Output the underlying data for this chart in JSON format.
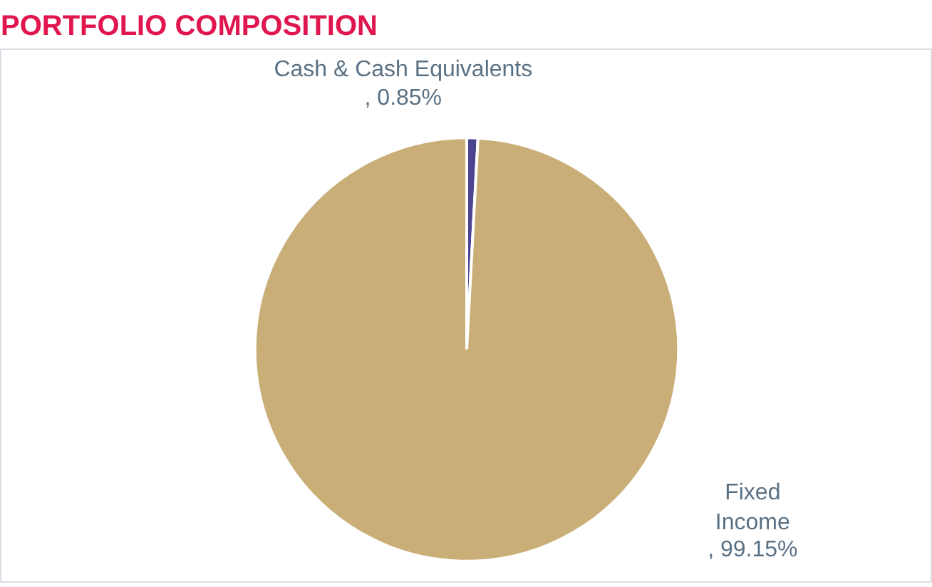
{
  "chart_data": {
    "type": "pie",
    "title": "PORTFOLIO COMPOSITION",
    "categories": [
      "Cash & Cash Equivalents",
      "Fixed Income"
    ],
    "values": [
      0.85,
      99.15
    ],
    "colors": [
      "#4b4591",
      "#c9ae78"
    ],
    "value_labels": [
      ", 0.85%",
      ", 99.15%"
    ],
    "legend": false
  }
}
